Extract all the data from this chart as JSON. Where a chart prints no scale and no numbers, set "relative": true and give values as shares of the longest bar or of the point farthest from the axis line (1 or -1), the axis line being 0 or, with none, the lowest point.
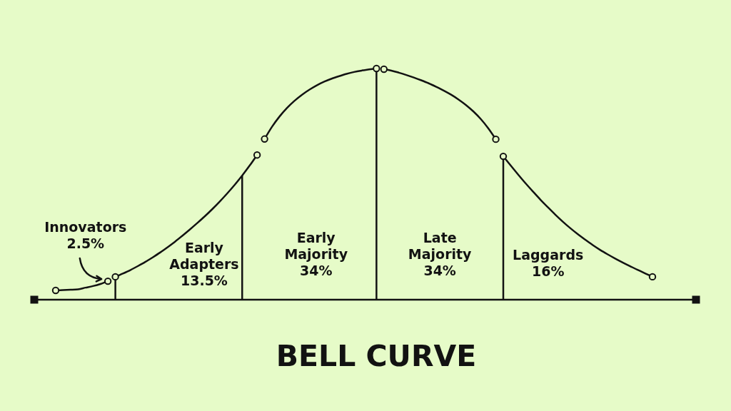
{
  "chart_data": {
    "type": "line",
    "title": "BELL CURVE",
    "relative": true,
    "categories": [
      null,
      null,
      null,
      null,
      null,
      null,
      null,
      null,
      null,
      null,
      null,
      null,
      null,
      null,
      null,
      null,
      null,
      null,
      null,
      null,
      null,
      null,
      null,
      null,
      null,
      null,
      null,
      null,
      null,
      null,
      null,
      null,
      null,
      null,
      null,
      null,
      null,
      null,
      null,
      null,
      null,
      null,
      null,
      null,
      null,
      null,
      null,
      null,
      null,
      null,
      null,
      null,
      null,
      null,
      null,
      null,
      null,
      null,
      null,
      null,
      null,
      null,
      null,
      null,
      null,
      null,
      null,
      null,
      null,
      null,
      null,
      null,
      null,
      null,
      null,
      null,
      null,
      null,
      null,
      null,
      null
    ],
    "series": [
      {
        "color": "#121212",
        "values": [
          0.04,
          0.042,
          0.043,
          0.045,
          0.052,
          0.059,
          0.068,
          0.08,
          null,
          null,
          null,
          null,
          null,
          null,
          null,
          null,
          null,
          null,
          null,
          null,
          null,
          null,
          null,
          null,
          null,
          null,
          null,
          null,
          null,
          null,
          null,
          null,
          null,
          null,
          null,
          null,
          null,
          null,
          null,
          null,
          null,
          null,
          null,
          null,
          null,
          null,
          null,
          null,
          null,
          null,
          null,
          null,
          null,
          null,
          null,
          null,
          null,
          null,
          null,
          null,
          null,
          null,
          null,
          null,
          null,
          null,
          null,
          null,
          null,
          null,
          null,
          null,
          null,
          null,
          null,
          null,
          null,
          null,
          null,
          null,
          null
        ]
      },
      {
        "color": "#121212",
        "values": [
          null,
          null,
          null,
          null,
          null,
          null,
          null,
          null,
          0.099,
          0.113,
          0.128,
          0.145,
          0.163,
          0.183,
          0.204,
          0.227,
          0.251,
          0.277,
          0.304,
          0.332,
          0.361,
          0.392,
          0.425,
          0.46,
          0.497,
          0.537,
          0.58,
          0.626,
          null,
          null,
          null,
          null,
          null,
          null,
          null,
          null,
          null,
          null,
          null,
          null,
          null,
          null,
          null,
          null,
          null,
          null,
          null,
          null,
          null,
          null,
          null,
          null,
          null,
          null,
          null,
          null,
          null,
          null,
          null,
          null,
          null,
          null,
          null,
          null,
          null,
          null,
          null,
          null,
          null,
          null,
          null,
          null,
          null,
          null,
          null,
          null,
          null,
          null,
          null,
          null,
          null
        ]
      },
      {
        "color": "#121212",
        "values": [
          null,
          null,
          null,
          null,
          null,
          null,
          null,
          null,
          null,
          null,
          null,
          null,
          null,
          null,
          null,
          null,
          null,
          null,
          null,
          null,
          null,
          null,
          null,
          null,
          null,
          null,
          null,
          null,
          0.695,
          0.748,
          0.792,
          0.829,
          0.86,
          0.886,
          0.908,
          0.927,
          0.943,
          0.956,
          0.967,
          0.977,
          0.985,
          0.991,
          0.996,
          1,
          null,
          null,
          null,
          null,
          null,
          null,
          null,
          null,
          null,
          null,
          null,
          null,
          null,
          null,
          null,
          null,
          null,
          null,
          null,
          null,
          null,
          null,
          null,
          null,
          null,
          null,
          null,
          null,
          null,
          null,
          null,
          null,
          null,
          null,
          null,
          null,
          null
        ]
      },
      {
        "color": "#121212",
        "values": [
          null,
          null,
          null,
          null,
          null,
          null,
          null,
          null,
          null,
          null,
          null,
          null,
          null,
          null,
          null,
          null,
          null,
          null,
          null,
          null,
          null,
          null,
          null,
          null,
          null,
          null,
          null,
          null,
          null,
          null,
          null,
          null,
          null,
          null,
          null,
          null,
          null,
          null,
          null,
          null,
          null,
          null,
          null,
          null,
          0.997,
          0.991,
          0.982,
          0.972,
          0.961,
          0.949,
          0.936,
          0.921,
          0.905,
          0.887,
          0.866,
          0.842,
          0.814,
          0.781,
          0.741,
          0.694,
          null,
          null,
          null,
          null,
          null,
          null,
          null,
          null,
          null,
          null,
          null,
          null,
          null,
          null,
          null,
          null,
          null,
          null,
          null,
          null,
          null
        ]
      },
      {
        "color": "#121212",
        "values": [
          null,
          null,
          null,
          null,
          null,
          null,
          null,
          null,
          null,
          null,
          null,
          null,
          null,
          null,
          null,
          null,
          null,
          null,
          null,
          null,
          null,
          null,
          null,
          null,
          null,
          null,
          null,
          null,
          null,
          null,
          null,
          null,
          null,
          null,
          null,
          null,
          null,
          null,
          null,
          null,
          null,
          null,
          null,
          null,
          null,
          null,
          null,
          null,
          null,
          null,
          null,
          null,
          null,
          null,
          null,
          null,
          null,
          null,
          null,
          null,
          0.62,
          0.58,
          0.541,
          0.503,
          0.467,
          0.432,
          0.399,
          0.367,
          0.337,
          0.309,
          0.283,
          0.259,
          0.236,
          0.215,
          0.196,
          0.178,
          0.161,
          0.145,
          0.129,
          0.114,
          0.099
        ]
      }
    ],
    "annotations": [
      "Innovators\n2.5%",
      "Early\nAdapters\n13.5%",
      "Early\nMajority\n34%",
      "Late\nMajority\n34%",
      "Laggards\n16%"
    ]
  }
}
